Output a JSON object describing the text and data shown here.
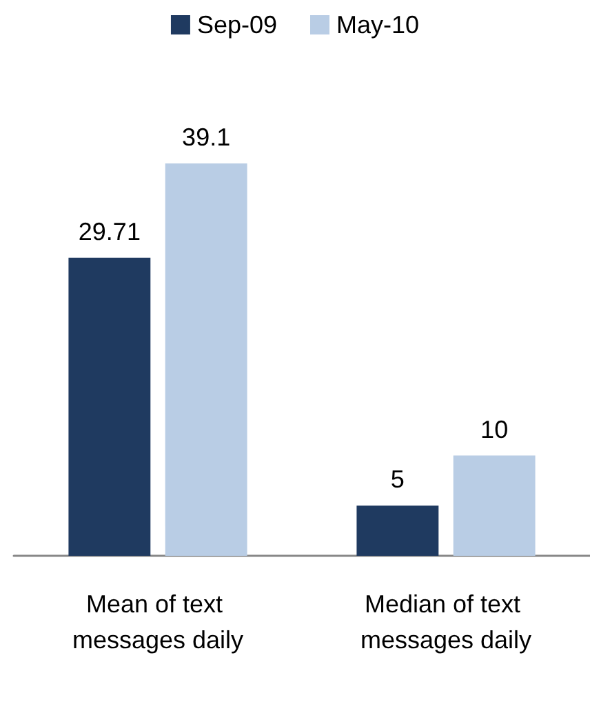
{
  "chart_data": {
    "type": "bar",
    "categories": [
      "Mean of text messages daily",
      "Median of text messages daily"
    ],
    "series": [
      {
        "name": "Sep-09",
        "color": "#1f3a60",
        "values": [
          29.71,
          5
        ]
      },
      {
        "name": "May-10",
        "color": "#b9cde5",
        "values": [
          39.1,
          10
        ]
      }
    ],
    "data_labels": true,
    "legend": "top"
  }
}
